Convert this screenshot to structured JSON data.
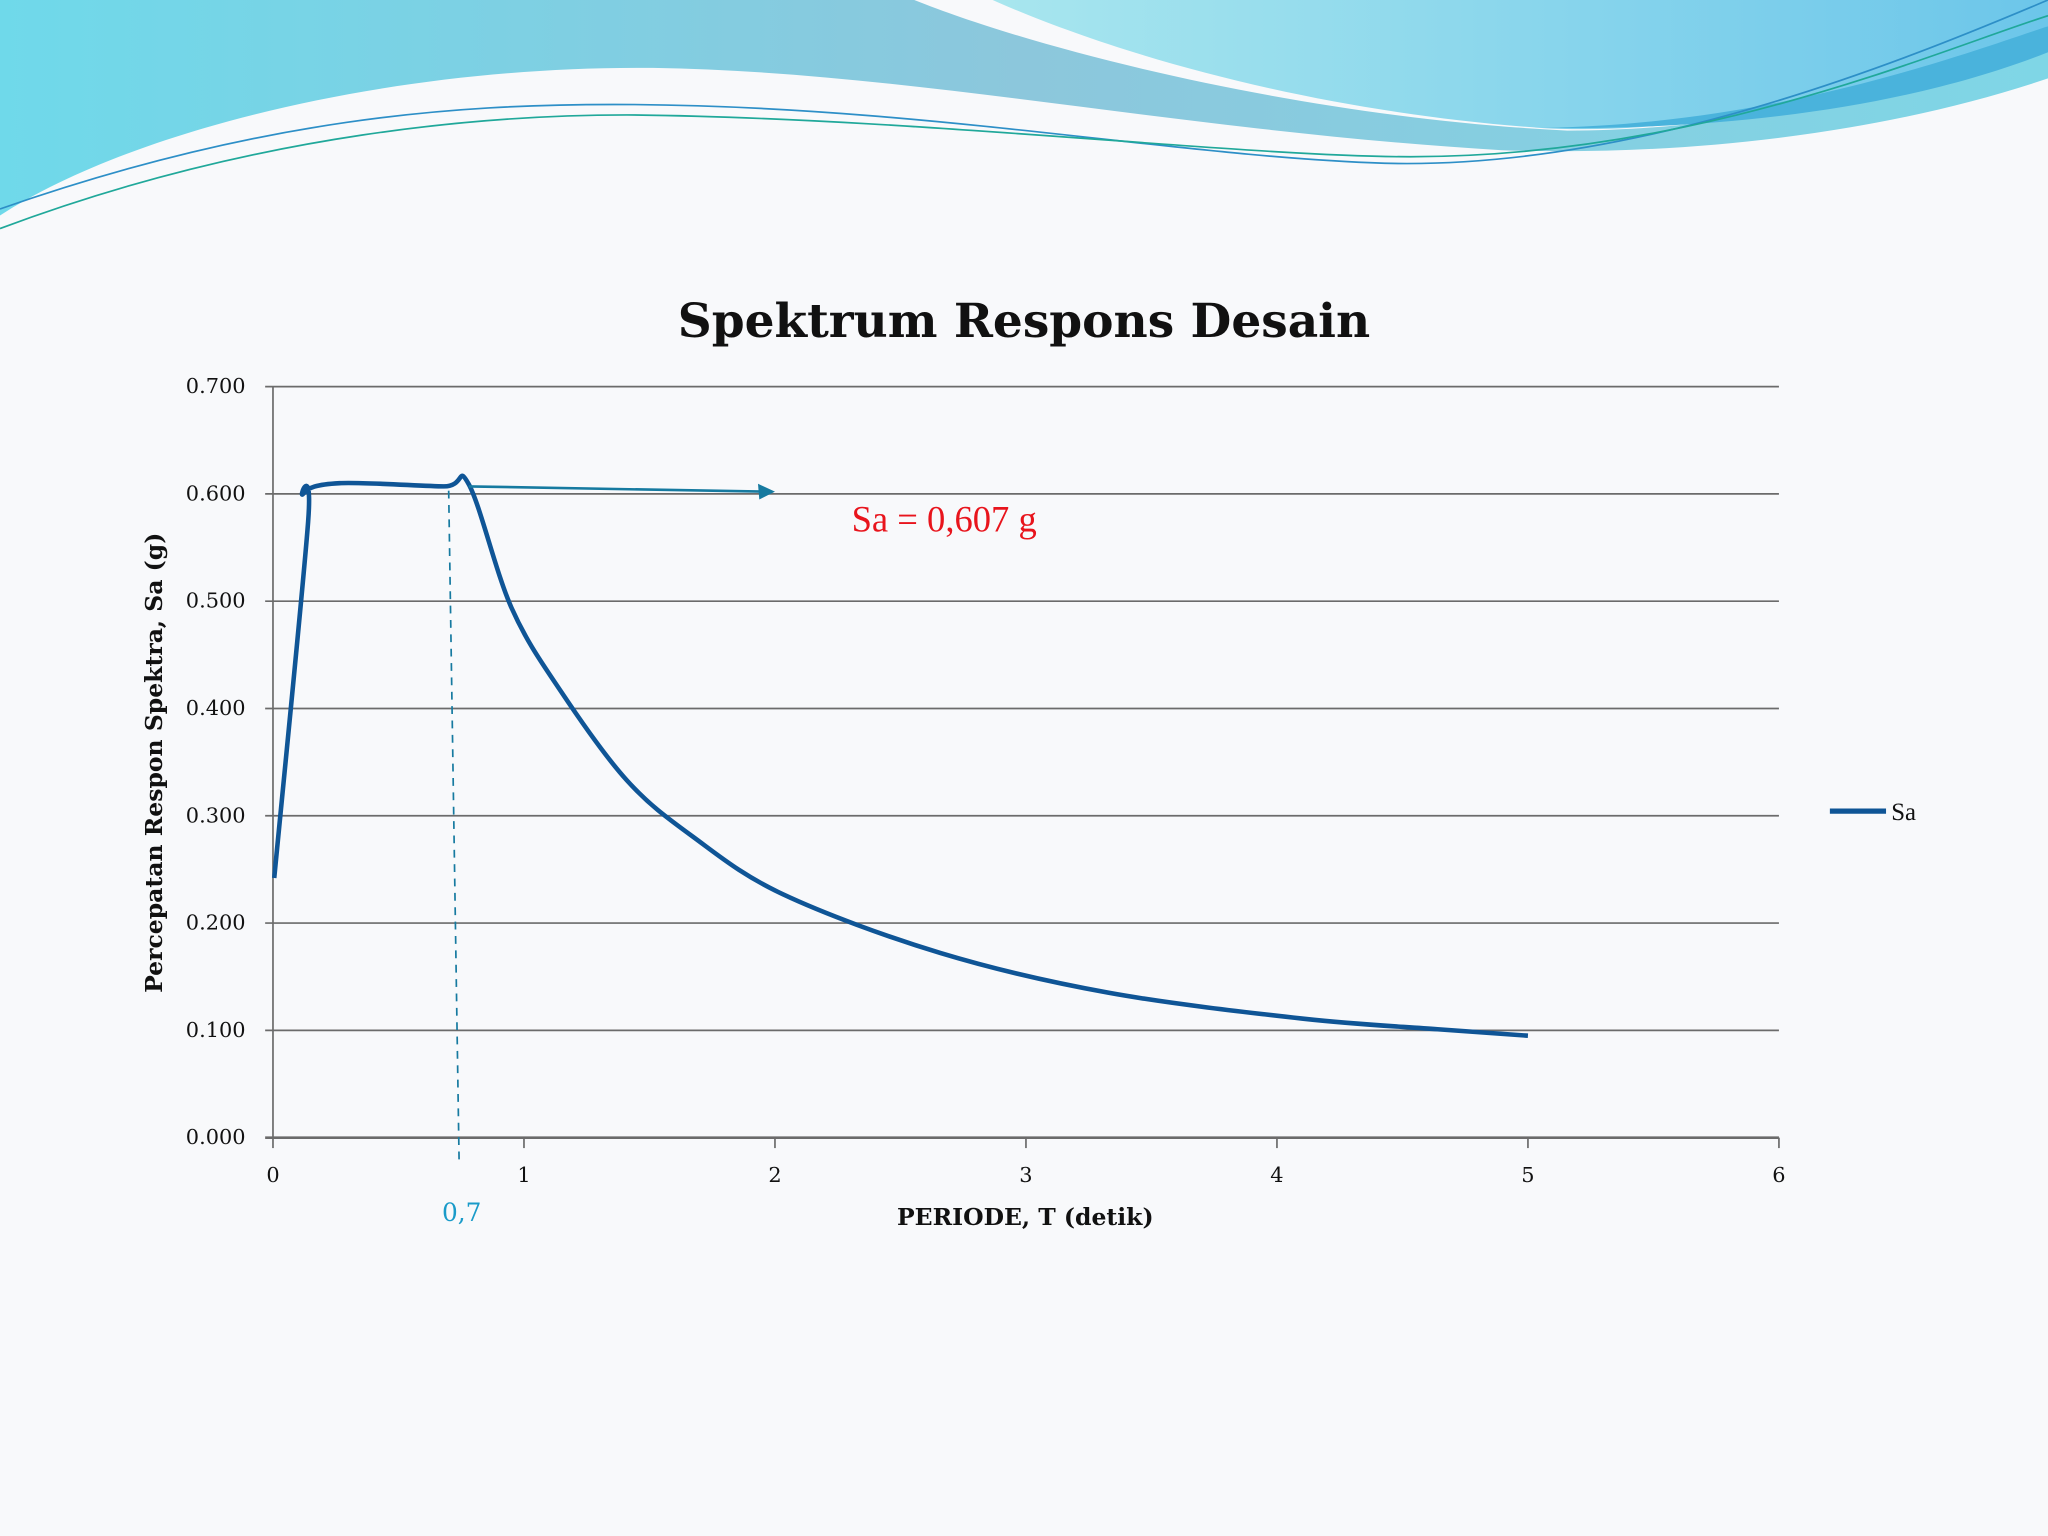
{
  "chart_data": {
    "type": "line",
    "title": "Spektrum Respons Desain",
    "xlabel": "PERIODE, T (detik)",
    "ylabel": "Percepatan Respon Spektra, Sa (g)",
    "xlim": [
      0,
      6
    ],
    "ylim": [
      0,
      0.7
    ],
    "x_ticks": [
      "0",
      "1",
      "2",
      "3",
      "4",
      "5",
      "6"
    ],
    "y_ticks": [
      "0.000",
      "0.100",
      "0.200",
      "0.300",
      "0.400",
      "0.500",
      "0.600",
      "0.700"
    ],
    "grid": true,
    "legend": {
      "position": "right",
      "entries": [
        "Sa"
      ]
    },
    "series": [
      {
        "name": "Sa",
        "color": "#0f5596",
        "x": [
          0.005,
          0.14,
          0.12,
          0.265,
          0.68,
          0.78,
          0.95,
          1.15,
          1.41,
          1.67,
          2.03,
          2.66,
          3.33,
          4.1,
          4.64,
          5.0
        ],
        "y": [
          0.242,
          0.574,
          0.6,
          0.61,
          0.607,
          0.609,
          0.494,
          0.415,
          0.333,
          0.281,
          0.227,
          0.172,
          0.135,
          0.111,
          0.101,
          0.095
        ]
      }
    ],
    "annotations": {
      "period_marker": {
        "t": 0.7,
        "label": "0,7",
        "color": "#1a9bc9"
      },
      "arrow": {
        "from_t": 0.78,
        "to_t": 2.0,
        "sa": 0.607,
        "color": "#167aa0"
      },
      "sa_label": {
        "text": "Sa = 0,607 g",
        "color": "#e8141c"
      }
    }
  }
}
